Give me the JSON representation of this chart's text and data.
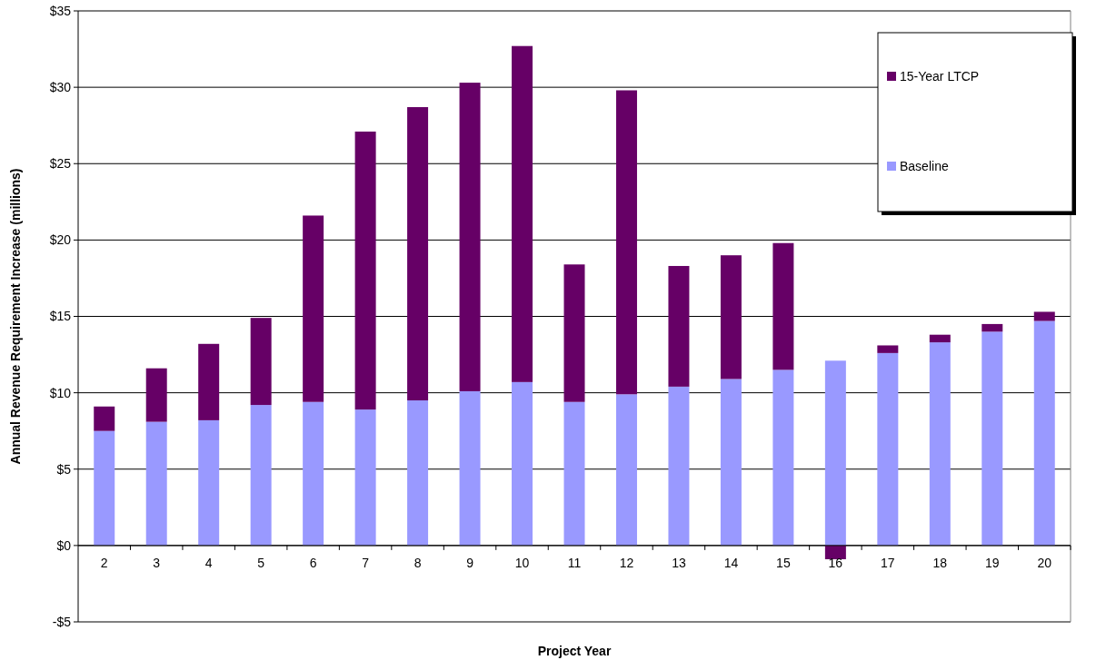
{
  "chart_data": {
    "type": "bar",
    "stacked": true,
    "xlabel": "Project Year",
    "ylabel": "Annual Revenue Requirement Increase (millions)",
    "categories": [
      "2",
      "3",
      "4",
      "5",
      "6",
      "7",
      "8",
      "9",
      "10",
      "11",
      "12",
      "13",
      "14",
      "15",
      "16",
      "17",
      "18",
      "19",
      "20"
    ],
    "series": [
      {
        "name": "Baseline",
        "color": "#9999ff",
        "values": [
          7.5,
          8.1,
          8.2,
          9.2,
          9.4,
          8.9,
          9.5,
          10.1,
          10.7,
          9.4,
          9.9,
          10.4,
          10.9,
          11.5,
          12.1,
          12.6,
          13.3,
          14.0,
          14.7
        ]
      },
      {
        "name": "15-Year LTCP",
        "color": "#660066",
        "values": [
          1.6,
          3.5,
          5.0,
          5.7,
          12.2,
          18.2,
          19.2,
          20.2,
          22.0,
          9.0,
          19.9,
          7.9,
          8.1,
          8.3,
          -0.9,
          0.5,
          0.5,
          0.5,
          0.6
        ]
      }
    ],
    "ylim": [
      -5,
      35
    ],
    "yticks": [
      {
        "value": -5,
        "label": "-$5"
      },
      {
        "value": 0,
        "label": "$0"
      },
      {
        "value": 5,
        "label": "$5"
      },
      {
        "value": 10,
        "label": "$10"
      },
      {
        "value": 15,
        "label": "$15"
      },
      {
        "value": 20,
        "label": "$20"
      },
      {
        "value": 25,
        "label": "$25"
      },
      {
        "value": 30,
        "label": "$30"
      },
      {
        "value": 35,
        "label": "$35"
      }
    ],
    "grid": "y",
    "legend": "top right"
  }
}
